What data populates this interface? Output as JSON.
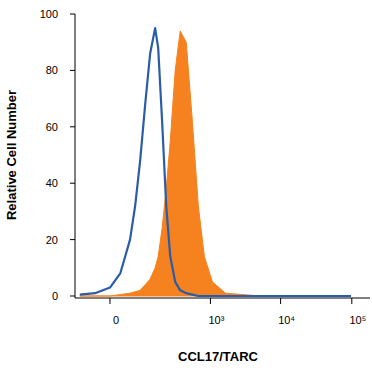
{
  "chart_data": {
    "type": "histogram",
    "x_label": "CCL17/TARC",
    "y_label": "Relative Cell Number",
    "x": [
      -67,
      -25,
      0,
      16,
      37,
      51,
      67,
      86,
      108,
      134,
      152,
      178,
      209,
      244,
      293,
      352,
      436,
      540,
      663,
      815,
      1070,
      1652,
      5226,
      19200,
      97400
    ],
    "series": [
      {
        "type": "line",
        "color": "#2a5caa",
        "values": [
          0.5,
          1,
          3,
          8,
          20,
          32,
          48,
          68,
          86,
          95,
          88,
          62,
          32,
          14,
          5,
          2,
          1,
          0.5,
          0,
          0,
          0,
          0,
          0,
          0,
          0
        ]
      },
      {
        "type": "area",
        "color": "#f5821f",
        "values": [
          0,
          0,
          0,
          0.5,
          1,
          1.5,
          2,
          4,
          6,
          10,
          14,
          24,
          38,
          55,
          80,
          94,
          90,
          62,
          32,
          14,
          5,
          1,
          0,
          0,
          0
        ]
      }
    ],
    "xlim": [
      -85,
      180000
    ],
    "xticks": [
      0,
      {
        "value": 1000,
        "label": "10³"
      },
      {
        "value": 10000,
        "label": "10⁴"
      },
      {
        "value": 100000,
        "label": "10⁵"
      }
    ],
    "ylim": [
      0,
      100
    ],
    "yticks": [
      0,
      20,
      40,
      60,
      80,
      100
    ],
    "grid": false
  }
}
